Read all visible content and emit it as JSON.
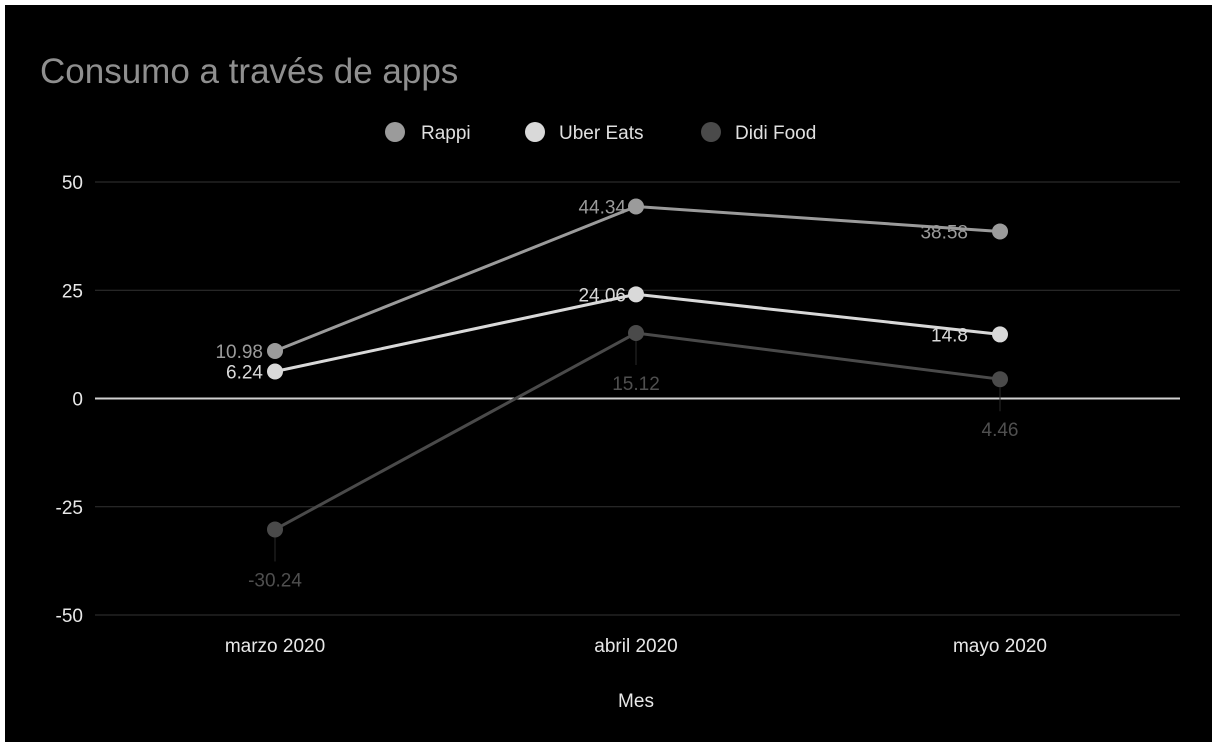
{
  "chart_data": {
    "type": "line",
    "title": "Consumo a través de apps",
    "xlabel": "Mes",
    "ylabel": "",
    "categories": [
      "marzo 2020",
      "abril 2020",
      "mayo 2020"
    ],
    "ylim": [
      -50,
      50
    ],
    "yticks": [
      50,
      25,
      0,
      -25,
      -50
    ],
    "ytick_labels": [
      "50",
      "25",
      "0",
      "-25",
      "-50"
    ],
    "grid": true,
    "legend_position": "top",
    "series": [
      {
        "name": "Rappi",
        "values": [
          10.98,
          44.34,
          38.58
        ],
        "labels": [
          "10.98",
          "44.34",
          "38.58"
        ],
        "color": "#9b9b9b"
      },
      {
        "name": "Uber Eats",
        "values": [
          6.24,
          24.06,
          14.8
        ],
        "labels": [
          "6.24",
          "24.06",
          "14.8"
        ],
        "color": "#d9d9d9"
      },
      {
        "name": "Didi Food",
        "values": [
          -30.24,
          15.12,
          4.46
        ],
        "labels": [
          "-30.24",
          "15.12",
          "4.46"
        ],
        "color": "#4a4a4a"
      }
    ]
  }
}
